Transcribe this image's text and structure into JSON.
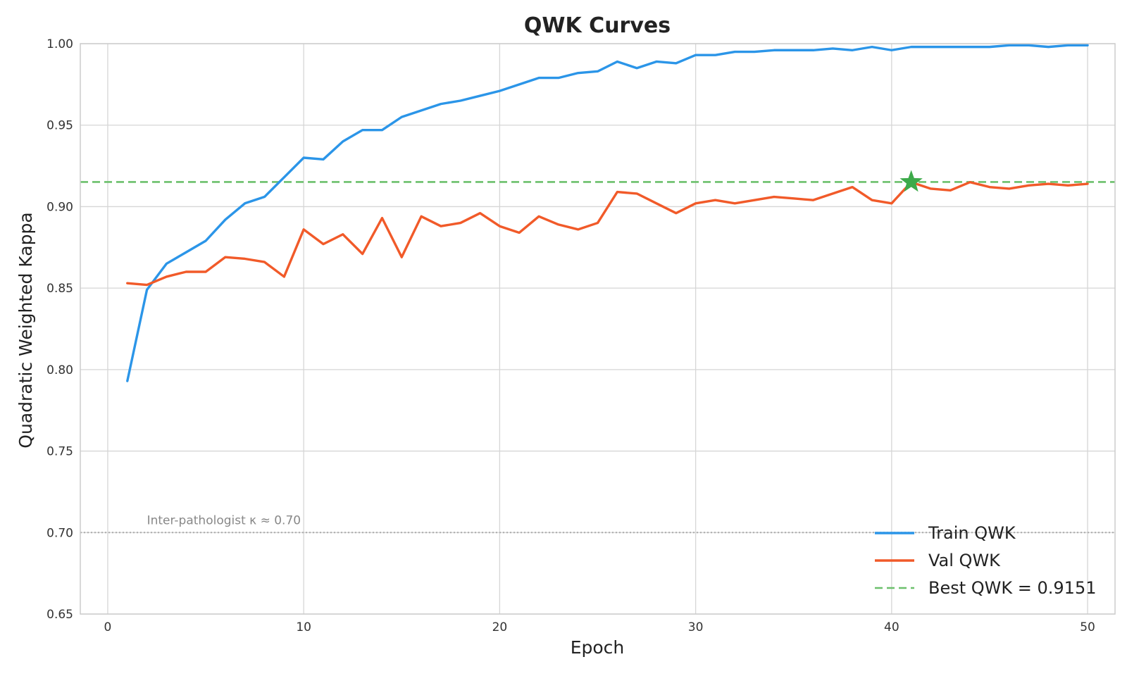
{
  "chart_data": {
    "type": "line",
    "title": "QWK Curves",
    "xlabel": "Epoch",
    "ylabel": "Quadratic Weighted Kappa",
    "xlim": [
      -1.4,
      51.4
    ],
    "ylim": [
      0.65,
      1.0
    ],
    "x_ticks": [
      0,
      10,
      20,
      30,
      40,
      50
    ],
    "y_ticks": [
      0.65,
      0.7,
      0.75,
      0.8,
      0.85,
      0.9,
      0.95,
      1.0
    ],
    "x_tick_labels": [
      "0",
      "10",
      "20",
      "30",
      "40",
      "50"
    ],
    "y_tick_labels": [
      "0.65",
      "0.70",
      "0.75",
      "0.80",
      "0.85",
      "0.90",
      "0.95",
      "1.00"
    ],
    "grid": true,
    "legend_position": "bottom-right",
    "x": [
      1,
      2,
      3,
      4,
      5,
      6,
      7,
      8,
      9,
      10,
      11,
      12,
      13,
      14,
      15,
      16,
      17,
      18,
      19,
      20,
      21,
      22,
      23,
      24,
      25,
      26,
      27,
      28,
      29,
      30,
      31,
      32,
      33,
      34,
      35,
      36,
      37,
      38,
      39,
      40,
      41,
      42,
      43,
      44,
      45,
      46,
      47,
      48,
      49,
      50
    ],
    "series": [
      {
        "name": "Train QWK",
        "color": "#2b95e8",
        "style": "solid",
        "values": [
          0.793,
          0.849,
          0.865,
          0.872,
          0.879,
          0.892,
          0.902,
          0.906,
          0.918,
          0.93,
          0.929,
          0.94,
          0.947,
          0.947,
          0.955,
          0.959,
          0.963,
          0.965,
          0.968,
          0.971,
          0.975,
          0.979,
          0.979,
          0.982,
          0.983,
          0.989,
          0.985,
          0.989,
          0.988,
          0.993,
          0.993,
          0.995,
          0.995,
          0.996,
          0.996,
          0.996,
          0.997,
          0.996,
          0.998,
          0.996,
          0.998,
          0.998,
          0.998,
          0.998,
          0.998,
          0.999,
          0.999,
          0.998,
          0.999,
          0.999
        ]
      },
      {
        "name": "Val QWK",
        "color": "#f15a29",
        "style": "solid",
        "values": [
          0.853,
          0.852,
          0.857,
          0.86,
          0.86,
          0.869,
          0.868,
          0.866,
          0.857,
          0.886,
          0.877,
          0.883,
          0.871,
          0.893,
          0.869,
          0.894,
          0.888,
          0.89,
          0.896,
          0.888,
          0.884,
          0.894,
          0.889,
          0.886,
          0.89,
          0.909,
          0.908,
          0.902,
          0.896,
          0.902,
          0.904,
          0.902,
          0.904,
          0.906,
          0.905,
          0.904,
          0.908,
          0.912,
          0.904,
          0.902,
          0.915,
          0.911,
          0.91,
          0.915,
          0.912,
          0.911,
          0.913,
          0.914,
          0.913,
          0.914
        ]
      }
    ],
    "reference_lines": [
      {
        "name": "Best QWK = 0.9151",
        "y": 0.9151,
        "color": "#6cc06c",
        "style": "dashed",
        "in_legend": true
      },
      {
        "name": "Inter-pathologist κ ≈ 0.70",
        "y": 0.7,
        "color": "#aaaaaa",
        "style": "dotted",
        "in_legend": false
      }
    ],
    "best_marker": {
      "x": 41,
      "y": 0.9151,
      "color": "#3daa4a",
      "shape": "star"
    },
    "annotation": "Inter-pathologist κ ≈ 0.70"
  }
}
